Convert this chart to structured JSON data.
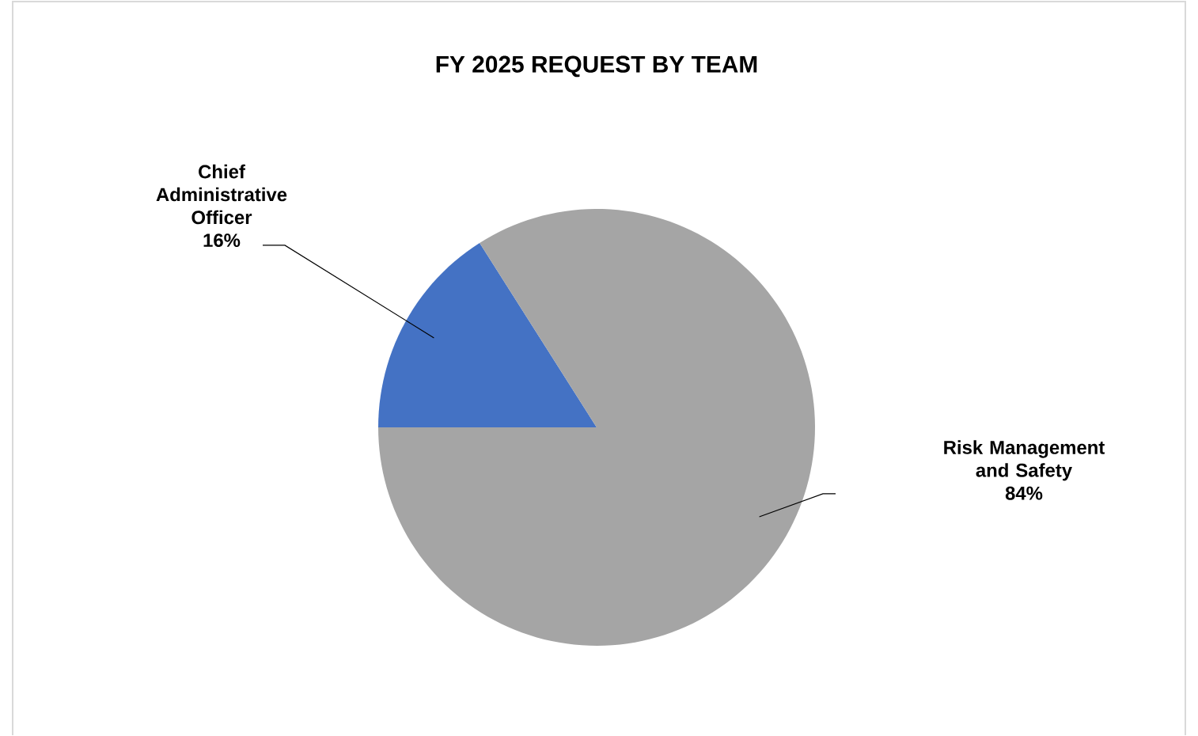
{
  "chart_data": {
    "type": "pie",
    "title": "FY 2025 REQUEST BY TEAM",
    "categories": [
      "Chief Administrative Officer",
      "Risk Management and Safety"
    ],
    "values": [
      16,
      84
    ],
    "value_labels": [
      "16%",
      "84%"
    ],
    "colors": [
      "#4472c4",
      "#a5a5a5"
    ]
  }
}
